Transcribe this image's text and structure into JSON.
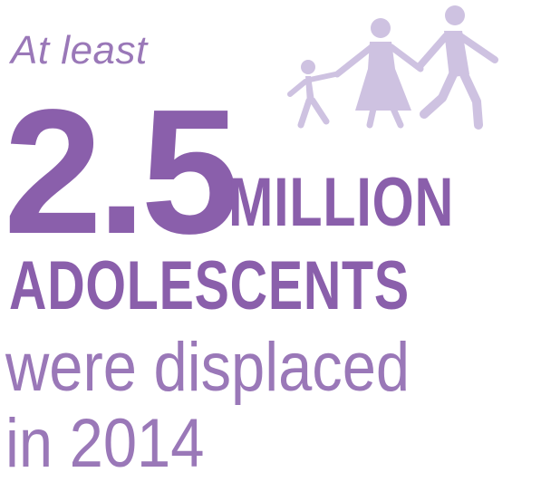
{
  "infographic": {
    "lead_text": "At least",
    "number": "2.5",
    "unit_line": "MILLION",
    "subject_line": "ADOLESCENTS",
    "predicate_line": "were displaced",
    "time_line": "in 2014",
    "illustration": "family-walking-icon"
  },
  "colors": {
    "accent": "#8a5fab",
    "accent_light": "#9a78b8",
    "icon": "#cec2e1"
  }
}
